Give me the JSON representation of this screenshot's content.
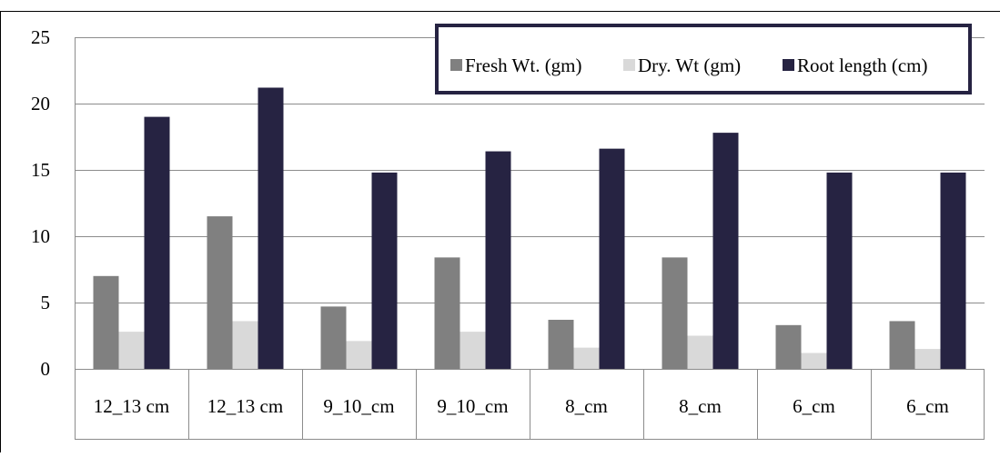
{
  "chart_data": {
    "type": "bar",
    "categories": [
      "12_13 cm",
      "12_13 cm",
      "9_10_cm",
      "9_10_cm",
      "8_cm",
      "8_cm",
      "6_cm",
      "6_cm"
    ],
    "series": [
      {
        "name": "Fresh Wt. (gm)",
        "color": "#808080",
        "values": [
          7.0,
          11.5,
          4.7,
          8.4,
          3.7,
          8.4,
          3.3,
          3.6
        ]
      },
      {
        "name": "Dry. Wt (gm)",
        "color": "#d9d9d9",
        "values": [
          2.8,
          3.6,
          2.1,
          2.8,
          1.6,
          2.5,
          1.2,
          1.5
        ]
      },
      {
        "name": "Root length (cm)",
        "color": "#262342",
        "values": [
          19.0,
          21.2,
          14.8,
          16.4,
          16.6,
          17.8,
          14.8,
          14.8
        ]
      }
    ],
    "yticks": [
      0,
      5,
      10,
      15,
      20,
      25
    ],
    "ylim": [
      0,
      25
    ],
    "grid": true,
    "legend_position": "top-right",
    "title": "",
    "xlabel": "",
    "ylabel": ""
  }
}
